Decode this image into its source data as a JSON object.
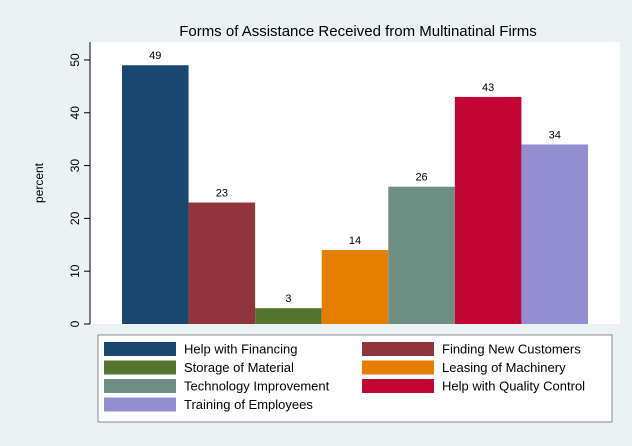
{
  "chart_data": {
    "type": "bar",
    "title": "Forms of Assistance Received from Multinatinal Firms",
    "y_label": "percent",
    "series": [
      {
        "name": "Help with Financing",
        "color": "#1a476f",
        "values": [
          49
        ]
      },
      {
        "name": "Finding New Customers",
        "color": "#90353b",
        "values": [
          23
        ]
      },
      {
        "name": "Storage of Material",
        "color": "#55752f",
        "values": [
          3
        ]
      },
      {
        "name": "Leasing of Machinery",
        "color": "#e37e00",
        "values": [
          14
        ]
      },
      {
        "name": "Technology Improvement",
        "color": "#6e8e84",
        "values": [
          26
        ]
      },
      {
        "name": "Help with Quality Control",
        "color": "#c10534",
        "values": [
          43
        ]
      },
      {
        "name": "Training of Employees",
        "color": "#938dd2",
        "values": [
          34
        ]
      }
    ],
    "ylim": [
      0,
      53.4
    ],
    "yticks": [
      0,
      10,
      20,
      30,
      40,
      50
    ],
    "grid": false,
    "legend_position": "bottom"
  }
}
